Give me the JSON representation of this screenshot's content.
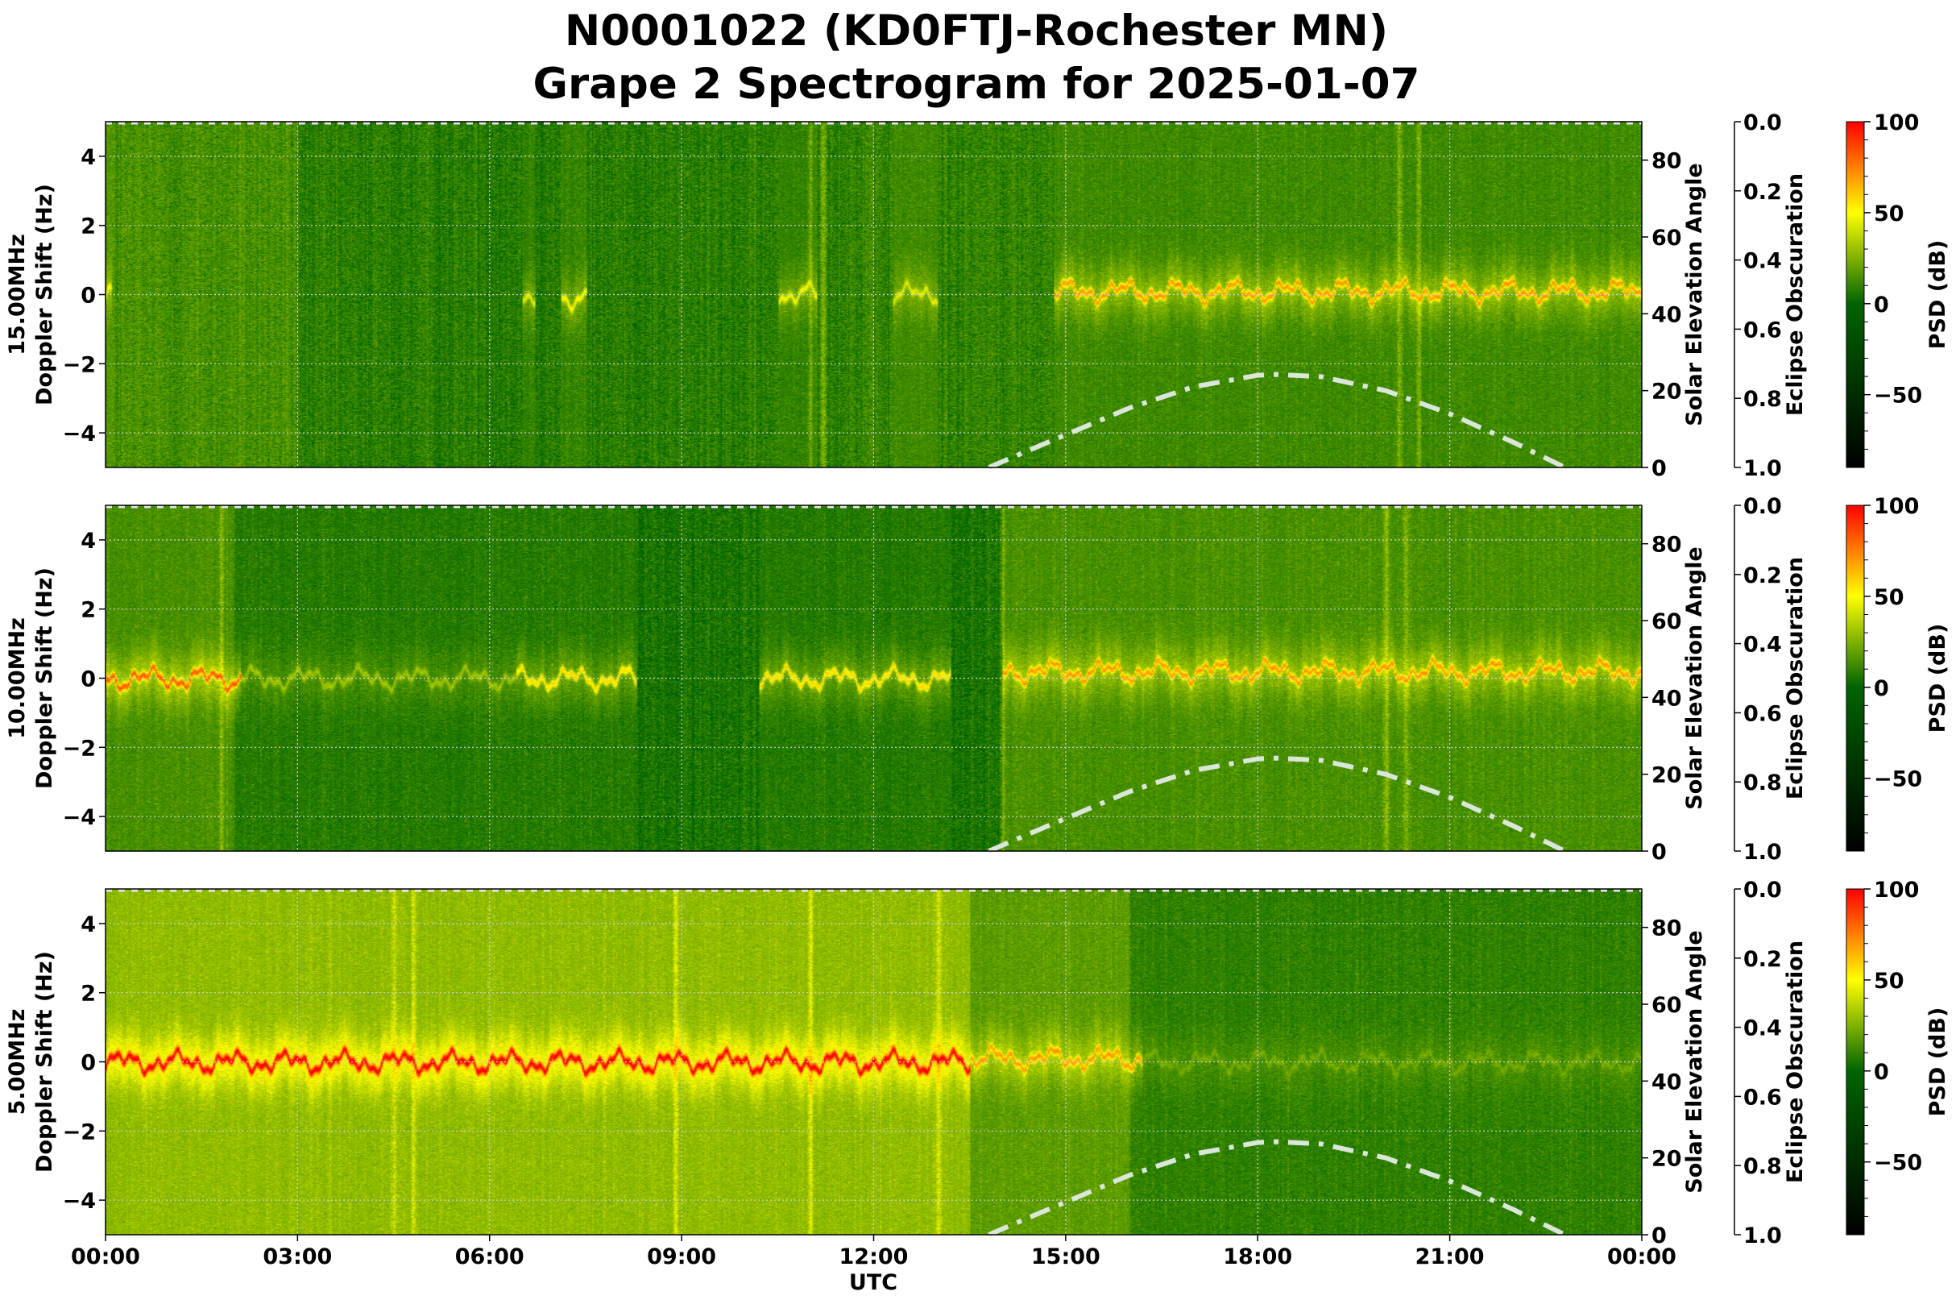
{
  "title": {
    "line1": "N0001022 (KD0FTJ-Rochester MN)",
    "line2": "Grape 2 Spectrogram for 2025-01-07"
  },
  "xaxis": {
    "label": "UTC",
    "ticks": [
      "00:00",
      "03:00",
      "06:00",
      "09:00",
      "12:00",
      "15:00",
      "18:00",
      "21:00",
      "00:00"
    ]
  },
  "colors": {
    "colormap": [
      "#000000",
      "#006400",
      "#ffff00",
      "#ff0000"
    ],
    "solar_curve": "#d9e6d9",
    "grid": "#d0d0d0"
  },
  "chart_data": [
    {
      "type": "heatmap",
      "ylabel_lines": [
        "15.00MHz",
        "Doppler Shift (Hz)"
      ],
      "ylim": [
        -5,
        5
      ],
      "yticks": [
        "−4",
        "−2",
        "0",
        "2",
        "4"
      ],
      "xlim_utc_hours": [
        0,
        24
      ],
      "y2label": "Solar Elevation Angle",
      "y2lim": [
        0,
        90
      ],
      "y2ticks": [
        "0",
        "20",
        "40",
        "60",
        "80"
      ],
      "y3label": "Eclipse Obscuration",
      "y3lim": [
        1.0,
        0.0
      ],
      "y3ticks": [
        "0.0",
        "0.2",
        "0.4",
        "0.6",
        "0.8",
        "1.0"
      ],
      "colorbar": {
        "label": "PSD (dB)",
        "range": [
          -90,
          100
        ],
        "ticks": [
          "100",
          "50",
          "0",
          "−50"
        ]
      },
      "grid": true,
      "background_db": [
        [
          0,
          3,
          14
        ],
        [
          3,
          11,
          8
        ],
        [
          11,
          24,
          10
        ]
      ],
      "signal_segments": [
        {
          "start": 0.0,
          "end": 0.1,
          "doppler_hz": 0.0,
          "db": 40
        },
        {
          "start": 6.5,
          "end": 6.7,
          "doppler_hz": 0.0,
          "db": 35
        },
        {
          "start": 7.1,
          "end": 7.5,
          "doppler_hz": -0.05,
          "db": 40
        },
        {
          "start": 10.5,
          "end": 11.1,
          "doppler_hz": 0.0,
          "db": 38
        },
        {
          "start": 12.3,
          "end": 13.0,
          "doppler_hz": 0.0,
          "db": 35
        },
        {
          "start": 14.8,
          "end": 24.0,
          "doppler_hz": 0.1,
          "db": 55
        }
      ],
      "broadband_spikes_utc_hours": [
        11.0,
        11.2,
        20.2,
        20.5
      ],
      "solar_elevation": {
        "time_utc_hours": [
          13.8,
          14.5,
          15,
          16,
          17,
          18,
          18.3,
          19,
          20,
          21,
          22,
          22.8
        ],
        "degrees": [
          0,
          5,
          8.5,
          15.5,
          21,
          24,
          24.2,
          23.6,
          20,
          14,
          6.5,
          0
        ]
      }
    },
    {
      "type": "heatmap",
      "ylabel_lines": [
        "10.00MHz",
        "Doppler Shift (Hz)"
      ],
      "ylim": [
        -5,
        5
      ],
      "yticks": [
        "−4",
        "−2",
        "0",
        "2",
        "4"
      ],
      "xlim_utc_hours": [
        0,
        24
      ],
      "y2label": "Solar Elevation Angle",
      "y2lim": [
        0,
        90
      ],
      "y2ticks": [
        "0",
        "20",
        "40",
        "60",
        "80"
      ],
      "y3label": "Eclipse Obscuration",
      "y3lim": [
        1.0,
        0.0
      ],
      "y3ticks": [
        "0.0",
        "0.2",
        "0.4",
        "0.6",
        "0.8",
        "1.0"
      ],
      "colorbar": {
        "label": "PSD (dB)",
        "range": [
          -90,
          100
        ],
        "ticks": [
          "100",
          "50",
          "0",
          "−50"
        ]
      },
      "grid": true,
      "background_db": [
        [
          0,
          2,
          12
        ],
        [
          2,
          14,
          5
        ],
        [
          14,
          24,
          12
        ]
      ],
      "signal_segments": [
        {
          "start": 0.0,
          "end": 2.1,
          "doppler_hz": 0.0,
          "db": 65
        },
        {
          "start": 2.1,
          "end": 6.4,
          "doppler_hz": 0.0,
          "db": 25
        },
        {
          "start": 6.4,
          "end": 8.3,
          "doppler_hz": 0.0,
          "db": 45
        },
        {
          "start": 10.2,
          "end": 13.2,
          "doppler_hz": 0.0,
          "db": 45
        },
        {
          "start": 14.0,
          "end": 24.0,
          "doppler_hz": 0.2,
          "db": 55
        }
      ],
      "broadband_spikes_utc_hours": [
        1.8,
        14.0,
        20.0,
        20.3
      ],
      "solar_elevation": {
        "time_utc_hours": [
          13.8,
          14.5,
          15,
          16,
          17,
          18,
          18.3,
          19,
          20,
          21,
          22,
          22.8
        ],
        "degrees": [
          0,
          5,
          8.5,
          15.5,
          21,
          24,
          24.2,
          23.6,
          20,
          14,
          6.5,
          0
        ]
      }
    },
    {
      "type": "heatmap",
      "ylabel_lines": [
        "5.00MHz",
        "Doppler Shift (Hz)"
      ],
      "ylim": [
        -5,
        5
      ],
      "yticks": [
        "−4",
        "−2",
        "0",
        "2",
        "4"
      ],
      "xlim_utc_hours": [
        0,
        24
      ],
      "y2label": "Solar Elevation Angle",
      "y2lim": [
        0,
        90
      ],
      "y2ticks": [
        "0",
        "20",
        "40",
        "60",
        "80"
      ],
      "y3label": "Eclipse Obscuration",
      "y3lim": [
        1.0,
        0.0
      ],
      "y3ticks": [
        "0.0",
        "0.2",
        "0.4",
        "0.6",
        "0.8",
        "1.0"
      ],
      "colorbar": {
        "label": "PSD (dB)",
        "range": [
          -90,
          100
        ],
        "ticks": [
          "100",
          "50",
          "0",
          "−50"
        ]
      },
      "grid": true,
      "background_db": [
        [
          0,
          13.5,
          26
        ],
        [
          13.5,
          16,
          16
        ],
        [
          16,
          24,
          7
        ]
      ],
      "signal_segments": [
        {
          "start": 0.0,
          "end": 13.5,
          "doppler_hz": 0.0,
          "db": 80
        },
        {
          "start": 13.5,
          "end": 16.2,
          "doppler_hz": 0.1,
          "db": 55
        },
        {
          "start": 16.2,
          "end": 24.0,
          "doppler_hz": 0.0,
          "db": 18
        }
      ],
      "broadband_spikes_utc_hours": [
        4.5,
        4.8,
        8.9,
        11.0,
        13.0
      ],
      "solar_elevation": {
        "time_utc_hours": [
          13.8,
          14.5,
          15,
          16,
          17,
          18,
          18.3,
          19,
          20,
          21,
          22,
          22.8
        ],
        "degrees": [
          0,
          5,
          8.5,
          15.5,
          21,
          24,
          24.2,
          23.6,
          20,
          14,
          6.5,
          0
        ]
      }
    }
  ]
}
